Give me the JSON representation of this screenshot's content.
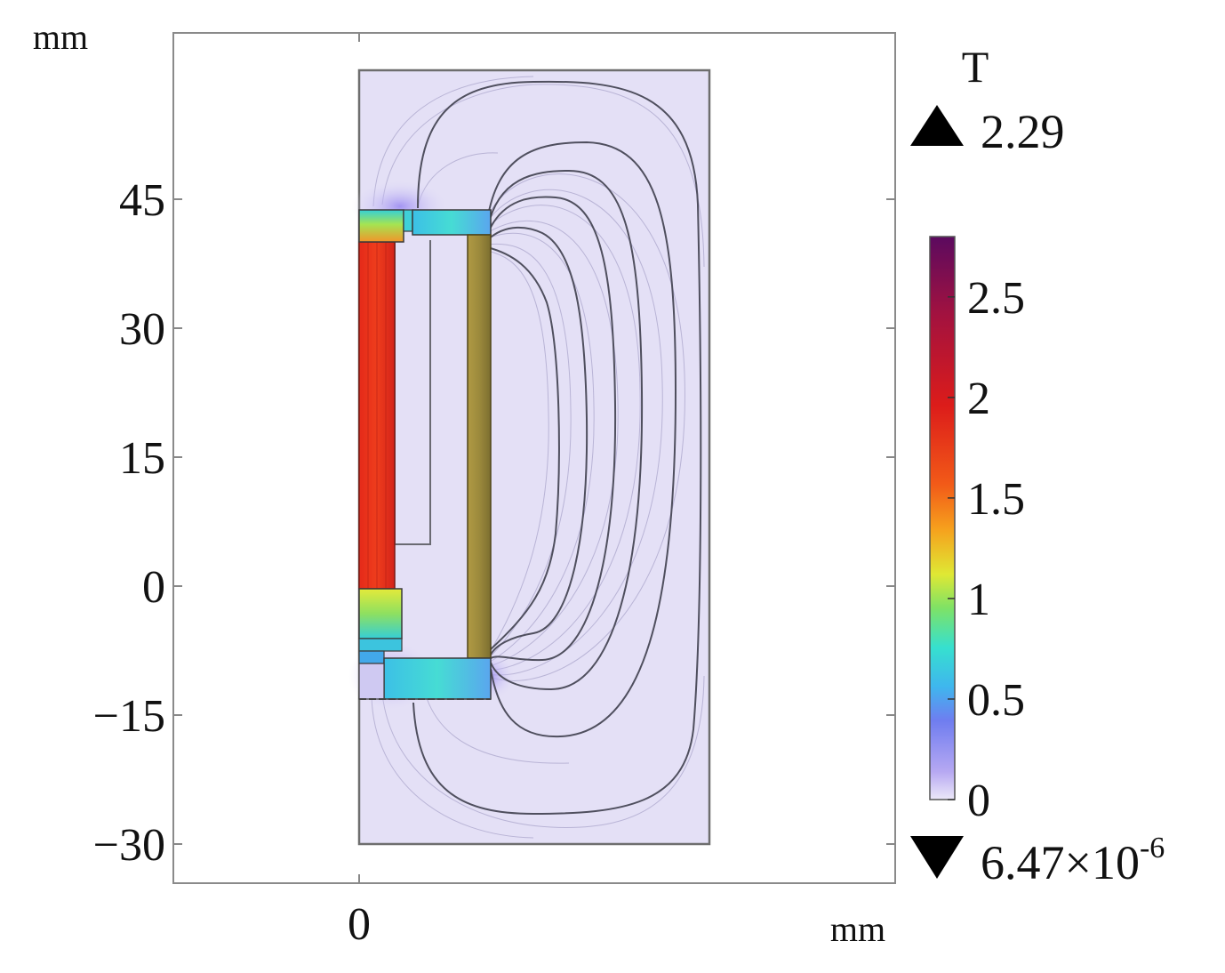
{
  "plot": {
    "y_unit": "mm",
    "x_unit": "mm",
    "y_ticks": [
      {
        "value": 45,
        "label": "45"
      },
      {
        "value": 30,
        "label": "30"
      },
      {
        "value": 15,
        "label": "15"
      },
      {
        "value": 0,
        "label": "0"
      },
      {
        "value": -15,
        "label": "−15"
      },
      {
        "value": -30,
        "label": "−30"
      }
    ],
    "x_ticks": [
      {
        "value": 0,
        "label": "0"
      }
    ]
  },
  "colorbar": {
    "unit": "T",
    "max_marker": "2.29",
    "min_marker_base": "6.47×10",
    "min_marker_exp": "-6",
    "ticks": [
      {
        "value": 2.5,
        "label": "2.5"
      },
      {
        "value": 2,
        "label": "2"
      },
      {
        "value": 1.5,
        "label": "1.5"
      },
      {
        "value": 1,
        "label": "1"
      },
      {
        "value": 0.5,
        "label": "0.5"
      },
      {
        "value": 0,
        "label": "0"
      }
    ],
    "range": [
      0,
      2.8
    ],
    "colors": [
      "#e9e4f7",
      "#a697f0",
      "#4f8df0",
      "#2fd8d8",
      "#5fe07a",
      "#e6ea35",
      "#f7a21e",
      "#f34e1a",
      "#d91a1a",
      "#a5103c",
      "#5c0a5e"
    ]
  },
  "colors": {
    "background_field": "#e3dff6",
    "core_red": "#e8321c",
    "coil_olive": "#9c8a3c",
    "frame": "#777777",
    "field_lines": "#555566"
  }
}
